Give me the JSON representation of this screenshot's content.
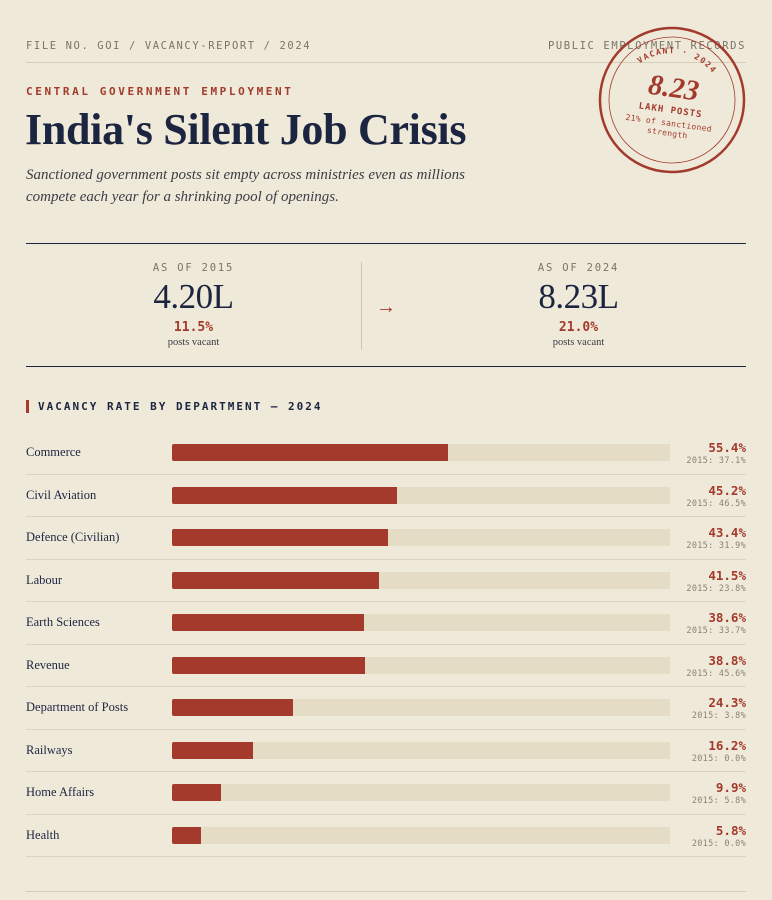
{
  "header": {
    "file_no": "FILE NO. GOI / VACANCY-REPORT / 2024",
    "records": "PUBLIC EMPLOYMENT RECORDS",
    "kicker": "CENTRAL GOVERNMENT EMPLOYMENT",
    "title": "India's Silent Job Crisis",
    "subtitle": "Sanctioned government posts sit empty across ministries even as millions compete each year for a shrinking pool of openings."
  },
  "stamp": {
    "top_text": "VACANT · 2024",
    "value": "8.23",
    "unit": "LAKH POSTS",
    "note": "21% of sanctioned strength",
    "color": "#a33a2c"
  },
  "stats": [
    {
      "label": "AS OF 2015",
      "value": "4.20L",
      "pct": "11.5%",
      "note": "posts vacant"
    },
    {
      "label": "AS OF 2024",
      "value": "8.23L",
      "pct": "21.0%",
      "note": "posts vacant"
    }
  ],
  "arrow": "→",
  "section_title": "VACANCY RATE BY DEPARTMENT — 2024",
  "chart_data": {
    "type": "bar",
    "orientation": "horizontal",
    "title": "VACANCY RATE BY DEPARTMENT — 2024",
    "xlim": [
      0,
      100
    ],
    "unit": "%",
    "prev_prefix": "2015: ",
    "bar_color": "#a33a2c",
    "track_color": "#e4dcc5",
    "categories": [
      "Commerce",
      "Civil Aviation",
      "Defence (Civilian)",
      "Labour",
      "Earth Sciences",
      "Revenue",
      "Department of Posts",
      "Railways",
      "Home Affairs",
      "Health"
    ],
    "values": [
      55.4,
      45.2,
      43.4,
      41.5,
      38.6,
      38.8,
      24.3,
      16.2,
      9.9,
      5.8
    ],
    "values_2015": [
      37.1,
      46.5,
      31.9,
      23.8,
      33.7,
      45.6,
      3.8,
      0.0,
      5.8,
      0.0
    ]
  }
}
